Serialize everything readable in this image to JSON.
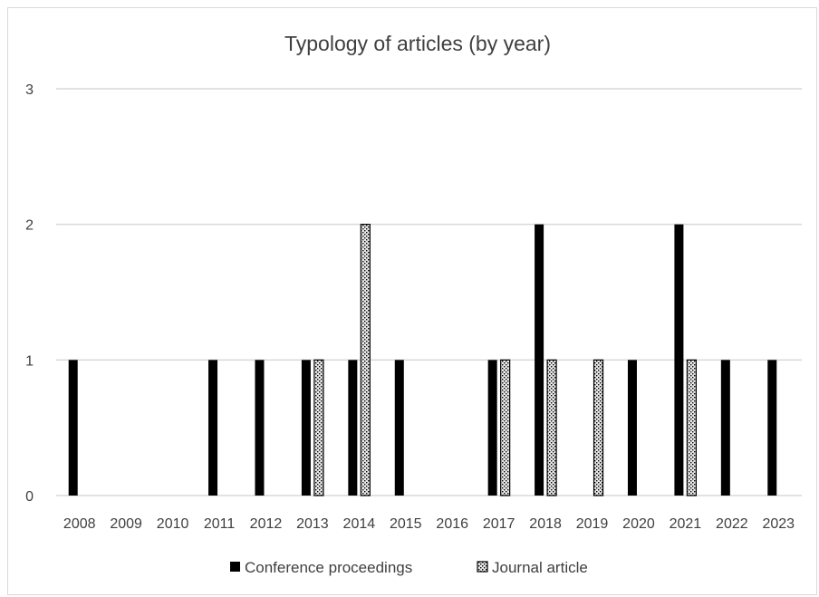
{
  "chart_data": {
    "type": "bar",
    "title": "Typology of articles (by year)",
    "xlabel": "",
    "ylabel": "",
    "categories": [
      "2008",
      "2009",
      "2010",
      "2011",
      "2012",
      "2013",
      "2014",
      "2015",
      "2016",
      "2017",
      "2018",
      "2019",
      "2020",
      "2021",
      "2022",
      "2023"
    ],
    "ylim": [
      0,
      3
    ],
    "yticks": [
      "0",
      "1",
      "2",
      "3"
    ],
    "grid": true,
    "legend_position": "bottom",
    "series": [
      {
        "name": "Conference proceedings",
        "values": [
          1,
          0,
          0,
          1,
          1,
          1,
          1,
          1,
          0,
          1,
          2,
          0,
          1,
          2,
          1,
          1
        ],
        "color": "#000000",
        "pattern": "solid"
      },
      {
        "name": "Journal article",
        "values": [
          0,
          0,
          0,
          0,
          0,
          1,
          2,
          0,
          0,
          1,
          1,
          1,
          0,
          1,
          0,
          0
        ],
        "color": "#d9d9d9",
        "pattern": "dotted"
      }
    ]
  }
}
